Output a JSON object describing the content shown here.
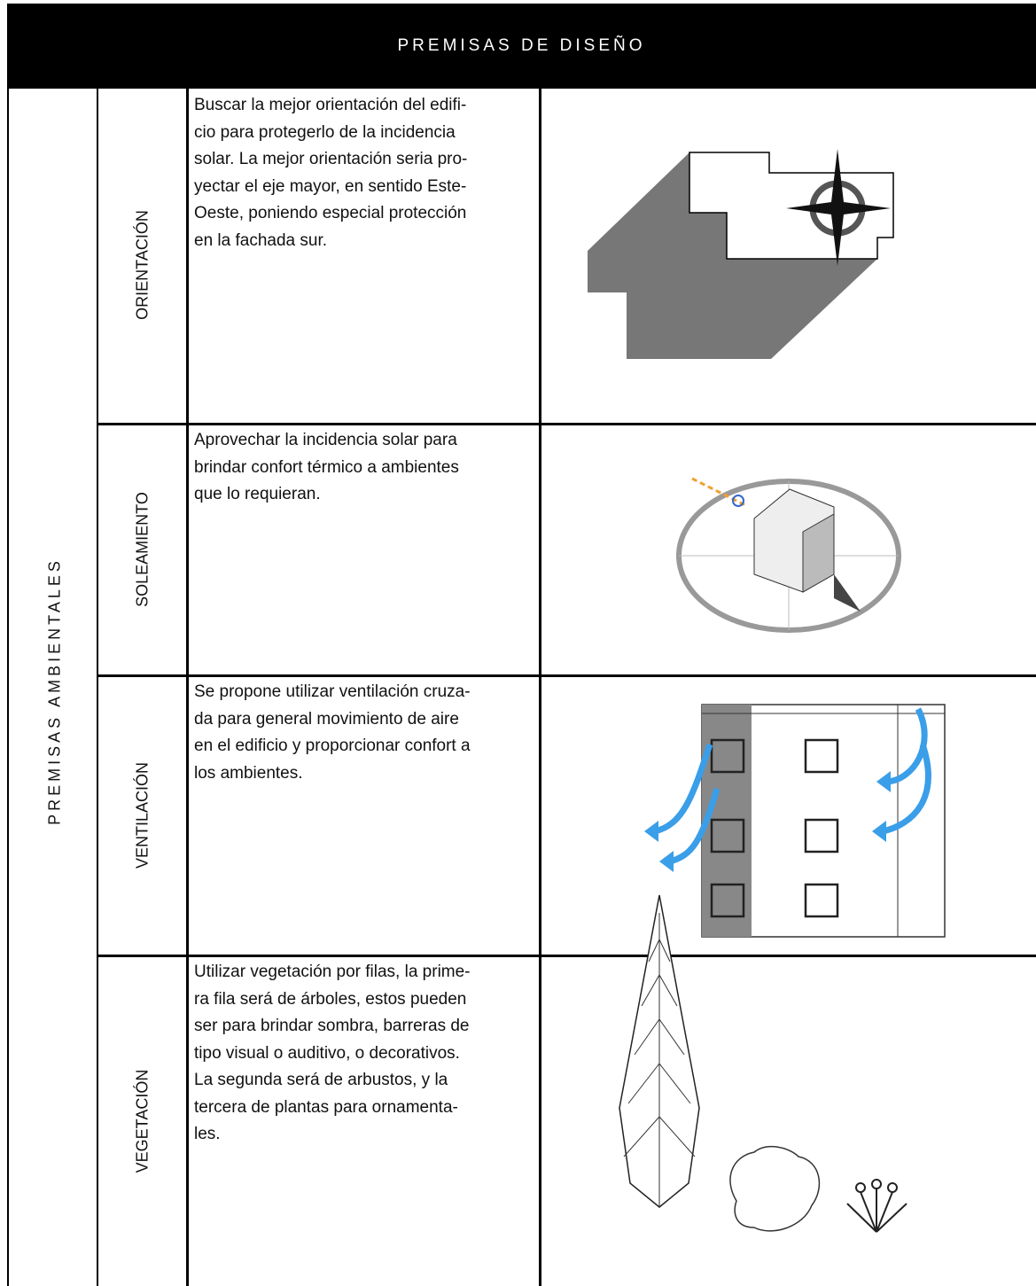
{
  "header": {
    "title": "PREMISAS DE DISEÑO"
  },
  "section": {
    "label": "PREMISAS AMBIENTALES"
  },
  "rows": [
    {
      "label": "ORIENTACIÓN",
      "lines": [
        "Buscar la mejor orientación del edifi-",
        "cio para protegerlo de la incidencia",
        "solar. La mejor orientación seria pro-",
        "yectar el eje mayor, en sentido Este-",
        "Oeste, poniendo especial protección",
        "en la fachada sur."
      ]
    },
    {
      "label": "SOLEAMIENTO",
      "lines": [
        "Aprovechar la incidencia solar para",
        "brindar confort térmico a ambientes",
        "que lo requieran."
      ]
    },
    {
      "label": "VENTILACIÓN",
      "lines": [
        "Se propone utilizar ventilación cruza-",
        "da para general movimiento de aire",
        "en el edificio y proporcionar confort a",
        "los ambientes."
      ]
    },
    {
      "label": "VEGETACIÓN",
      "lines": [
        "Utilizar vegetación por filas, la prime-",
        "ra fila será de árboles, estos pueden",
        "ser para brindar sombra, barreras de",
        "tipo visual o auditivo, o decorativos.",
        "La segunda será de arbustos, y la",
        "tercera de plantas para ornamenta-",
        "les."
      ]
    }
  ]
}
